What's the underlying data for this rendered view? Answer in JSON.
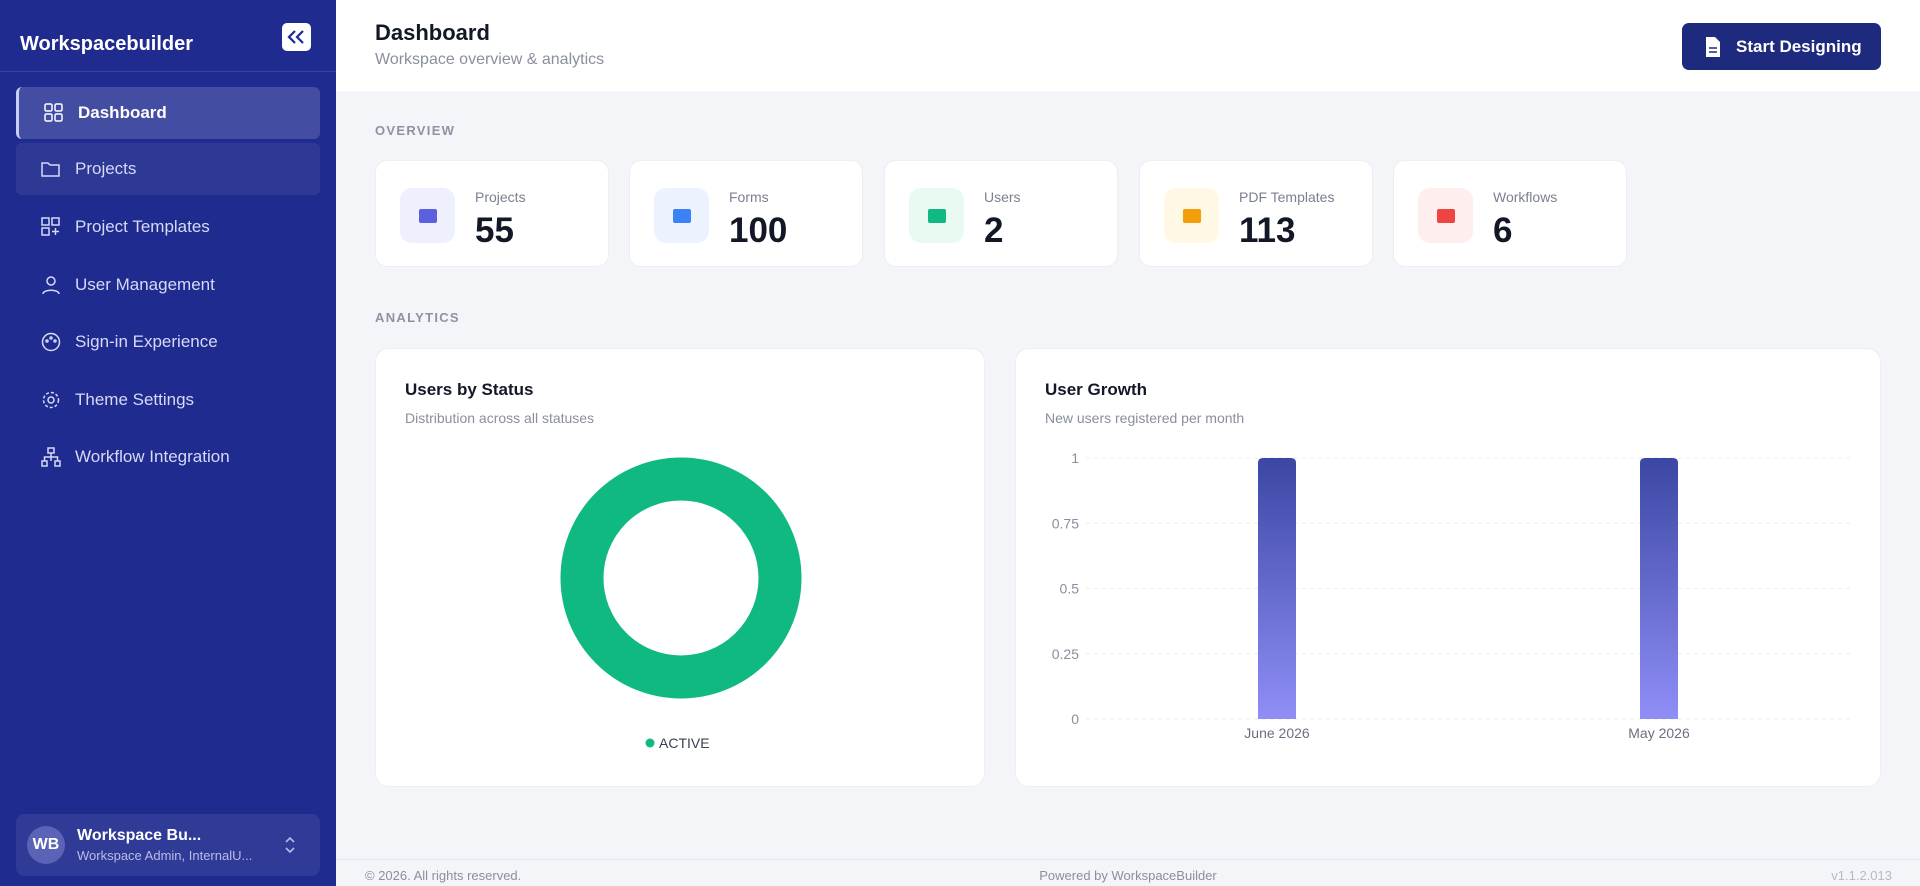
{
  "sidebar": {
    "brand": "Workspacebuilder",
    "nav": [
      "Dashboard",
      "Projects",
      "Project Templates",
      "User Management",
      "Sign-in Experience",
      "Theme Settings",
      "Workflow Integration"
    ],
    "user": {
      "initials": "WB",
      "name": "Workspace Bu...",
      "role": "Workspace Admin, InternalU..."
    }
  },
  "header": {
    "title": "Dashboard",
    "subtitle": "Workspace overview & analytics",
    "button": "Start Designing"
  },
  "overview": {
    "label": "OVERVIEW",
    "cards": [
      {
        "label": "Projects",
        "value": 55
      },
      {
        "label": "Forms",
        "value": 100
      },
      {
        "label": "Users",
        "value": 2
      },
      {
        "label": "PDF Templates",
        "value": 113
      },
      {
        "label": "Workflows",
        "value": 6
      }
    ]
  },
  "analytics": {
    "label": "ANALYTICS"
  },
  "chart_data": [
    {
      "type": "pie",
      "title": "Users by Status",
      "subtitle": "Distribution across all statuses",
      "categories": [
        "ACTIVE"
      ],
      "values": [
        2
      ],
      "colors": [
        "#10b981"
      ],
      "donut": true
    },
    {
      "type": "bar",
      "title": "User Growth",
      "subtitle": "New users registered per month",
      "categories": [
        "June 2026",
        "May 2026"
      ],
      "values": [
        1,
        1
      ],
      "color": "#3b47a3",
      "color_bottom": "#8f8ef7",
      "ylim": [
        0,
        1
      ],
      "yticks": [
        0,
        0.25,
        0.5,
        0.75,
        1
      ],
      "grid": true
    }
  ],
  "footer": {
    "copyright": "© 2026. All rights reserved.",
    "powered": "Powered by WorkspaceBuilder",
    "version": "v1.1.2.013"
  }
}
